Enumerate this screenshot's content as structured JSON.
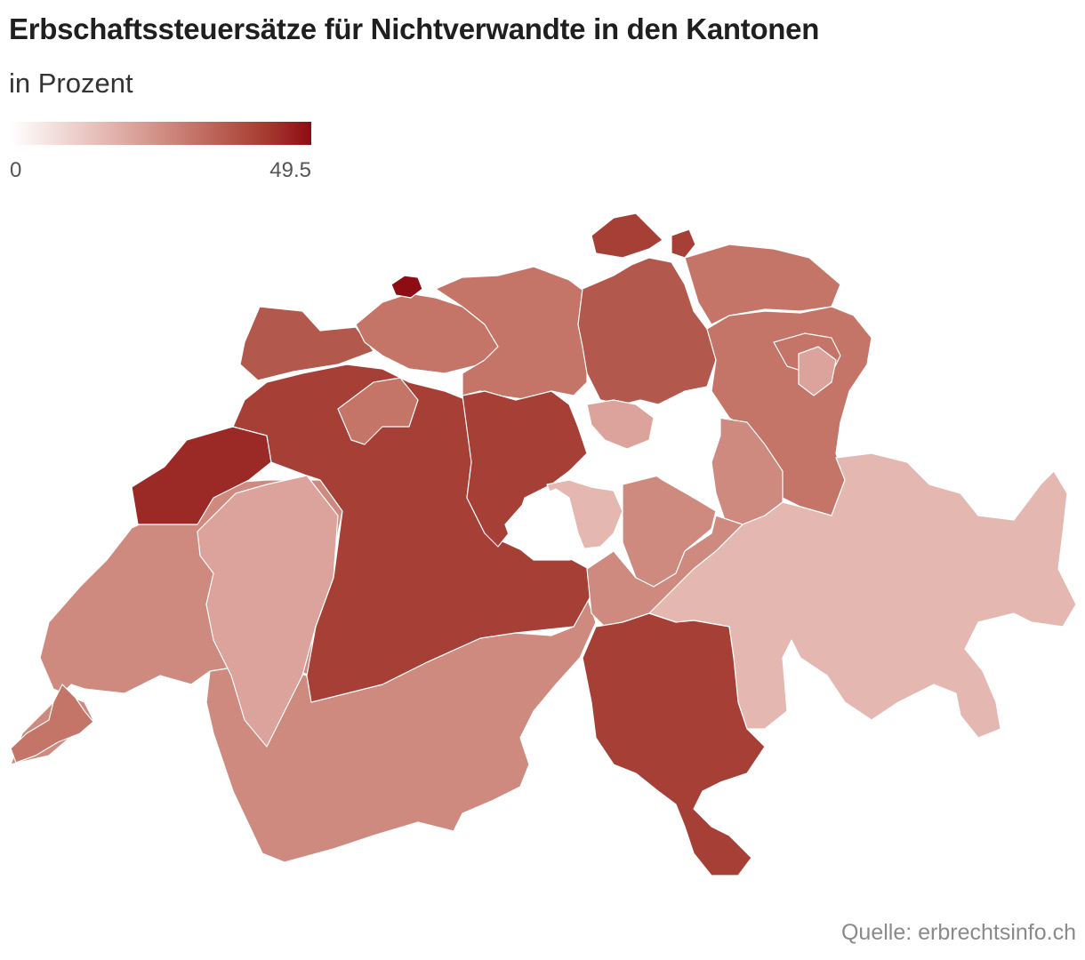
{
  "chart": {
    "title": "Erbschaftssteuersätze für Nichtverwandte in den Kantonen",
    "subtitle": "in Prozent",
    "legend": {
      "min": "0",
      "max": "49.5"
    },
    "source": "Quelle: erbrechtsinfo.ch"
  },
  "colors": {
    "scale_min": "#ffffff",
    "scale_max": "#8e0c14",
    "tier_darkest": "#8e0c14",
    "tier_dark": "#9b2a27",
    "tier_strong": "#a63f36",
    "tier_medium": "#b2584c",
    "tier_mid": "#c47568",
    "tier_light": "#ce8a7f",
    "tier_lighter": "#dba39b",
    "tier_lightest": "#e4b7b1"
  }
}
